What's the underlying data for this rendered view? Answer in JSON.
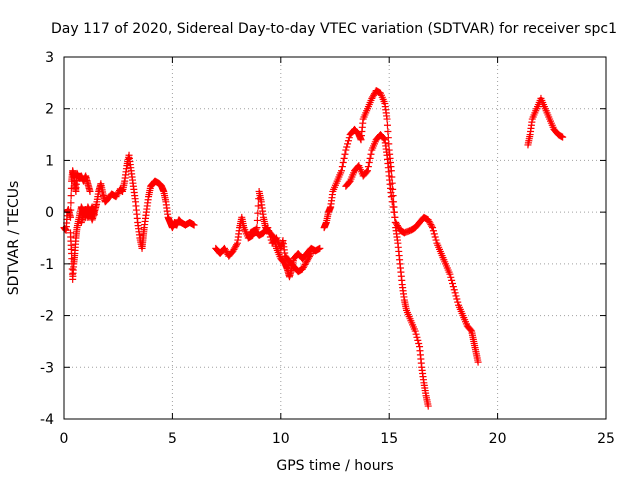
{
  "chart_data": {
    "type": "scatter",
    "title": "Day 117 of 2020, Sidereal Day-to-day VTEC variation (SDTVAR) for receiver spc1",
    "xlabel": "GPS time / hours",
    "ylabel": "SDTVAR / TECUs",
    "xlim": [
      0,
      25
    ],
    "ylim": [
      -4,
      3
    ],
    "xticks": [
      "0",
      "5",
      "10",
      "15",
      "20",
      "25"
    ],
    "yticks": [
      "-4",
      "-3",
      "-2",
      "-1",
      "0",
      "1",
      "2",
      "3"
    ],
    "grid": true,
    "marker": "plus",
    "color": "#ff0000",
    "series": [
      {
        "name": "SDTVAR",
        "segments": [
          [
            [
              0.0,
              -0.3
            ],
            [
              0.1,
              -0.35
            ],
            [
              0.15,
              0.0
            ],
            [
              0.2,
              0.05
            ],
            [
              0.3,
              -0.1
            ],
            [
              0.35,
              0.6
            ],
            [
              0.4,
              0.8
            ],
            [
              0.45,
              0.7
            ],
            [
              0.5,
              0.55
            ],
            [
              0.55,
              0.4
            ],
            [
              0.6,
              0.75
            ],
            [
              0.7,
              0.65
            ],
            [
              0.8,
              0.7
            ],
            [
              0.9,
              0.6
            ],
            [
              1.0,
              0.7
            ],
            [
              1.1,
              0.55
            ],
            [
              1.2,
              0.4
            ]
          ],
          [
            [
              0.3,
              -0.4
            ],
            [
              0.35,
              -0.8
            ],
            [
              0.4,
              -1.3
            ],
            [
              0.45,
              -1.0
            ],
            [
              0.5,
              -0.8
            ],
            [
              0.55,
              -0.5
            ],
            [
              0.6,
              -0.3
            ],
            [
              0.7,
              -0.1
            ],
            [
              0.8,
              0.1
            ],
            [
              0.9,
              0.0
            ],
            [
              1.0,
              -0.1
            ],
            [
              1.1,
              0.1
            ],
            [
              1.2,
              0.0
            ],
            [
              1.3,
              -0.15
            ],
            [
              1.4,
              0.0
            ],
            [
              1.5,
              0.15
            ],
            [
              1.6,
              0.4
            ],
            [
              1.7,
              0.55
            ],
            [
              1.8,
              0.35
            ],
            [
              1.9,
              0.2
            ],
            [
              2.0,
              0.25
            ],
            [
              2.2,
              0.35
            ],
            [
              2.4,
              0.3
            ],
            [
              2.6,
              0.45
            ],
            [
              2.7,
              0.4
            ],
            [
              2.8,
              0.6
            ],
            [
              2.9,
              0.9
            ],
            [
              3.0,
              1.1
            ],
            [
              3.1,
              0.8
            ],
            [
              3.2,
              0.5
            ],
            [
              3.3,
              0.2
            ],
            [
              3.4,
              -0.2
            ],
            [
              3.5,
              -0.5
            ],
            [
              3.6,
              -0.7
            ],
            [
              3.65,
              -0.5
            ],
            [
              3.7,
              -0.3
            ],
            [
              3.8,
              0.0
            ],
            [
              3.9,
              0.3
            ],
            [
              4.0,
              0.5
            ],
            [
              4.1,
              0.55
            ],
            [
              4.2,
              0.6
            ],
            [
              4.4,
              0.55
            ],
            [
              4.5,
              0.5
            ],
            [
              4.6,
              0.4
            ],
            [
              4.7,
              0.2
            ],
            [
              4.8,
              -0.1
            ],
            [
              4.9,
              -0.2
            ],
            [
              5.0,
              -0.3
            ],
            [
              5.1,
              -0.2
            ],
            [
              5.2,
              -0.25
            ],
            [
              5.3,
              -0.15
            ],
            [
              5.4,
              -0.2
            ],
            [
              5.6,
              -0.25
            ],
            [
              5.8,
              -0.2
            ],
            [
              6.0,
              -0.25
            ]
          ],
          [
            [
              0.8,
              -0.2
            ],
            [
              0.9,
              -0.05
            ],
            [
              1.0,
              0.05
            ],
            [
              1.1,
              -0.1
            ],
            [
              1.2,
              0.0
            ],
            [
              1.3,
              0.1
            ],
            [
              1.4,
              -0.05
            ]
          ],
          [
            [
              7.0,
              -0.7
            ],
            [
              7.2,
              -0.8
            ],
            [
              7.4,
              -0.7
            ],
            [
              7.6,
              -0.85
            ],
            [
              7.8,
              -0.75
            ],
            [
              8.0,
              -0.6
            ],
            [
              8.1,
              -0.3
            ],
            [
              8.2,
              -0.1
            ],
            [
              8.3,
              -0.3
            ],
            [
              8.5,
              -0.5
            ],
            [
              8.7,
              -0.45
            ],
            [
              8.9,
              -0.3
            ],
            [
              9.0,
              0.4
            ],
            [
              9.1,
              0.2
            ],
            [
              9.2,
              -0.1
            ],
            [
              9.3,
              -0.3
            ],
            [
              9.5,
              -0.4
            ],
            [
              9.7,
              -0.5
            ],
            [
              9.8,
              -0.7
            ],
            [
              10.0,
              -0.9
            ],
            [
              10.2,
              -1.0
            ],
            [
              10.3,
              -1.1
            ],
            [
              10.4,
              -1.25
            ],
            [
              10.5,
              -1.1
            ],
            [
              10.6,
              -0.9
            ],
            [
              10.8,
              -0.8
            ],
            [
              11.0,
              -0.9
            ],
            [
              11.2,
              -0.8
            ],
            [
              11.4,
              -0.7
            ],
            [
              11.6,
              -0.75
            ],
            [
              11.8,
              -0.7
            ]
          ],
          [
            [
              8.6,
              -0.4
            ],
            [
              8.8,
              -0.35
            ],
            [
              9.0,
              -0.45
            ],
            [
              9.2,
              -0.4
            ],
            [
              9.4,
              -0.3
            ],
            [
              9.6,
              -0.6
            ],
            [
              9.8,
              -0.5
            ],
            [
              10.0,
              -0.7
            ],
            [
              10.1,
              -0.55
            ],
            [
              10.2,
              -0.85
            ],
            [
              10.4,
              -0.95
            ],
            [
              10.6,
              -1.05
            ],
            [
              10.8,
              -1.15
            ],
            [
              11.0,
              -1.1
            ],
            [
              11.2,
              -0.95
            ],
            [
              11.4,
              -0.8
            ]
          ],
          [
            [
              12.0,
              -0.3
            ],
            [
              12.1,
              -0.2
            ],
            [
              12.2,
              0.0
            ],
            [
              12.3,
              0.1
            ],
            [
              12.4,
              0.4
            ],
            [
              12.6,
              0.6
            ],
            [
              12.8,
              0.8
            ],
            [
              13.0,
              1.2
            ],
            [
              13.2,
              1.5
            ],
            [
              13.4,
              1.6
            ],
            [
              13.6,
              1.5
            ],
            [
              13.7,
              1.4
            ],
            [
              13.8,
              1.8
            ],
            [
              14.0,
              2.0
            ],
            [
              14.2,
              2.2
            ],
            [
              14.4,
              2.35
            ],
            [
              14.6,
              2.3
            ],
            [
              14.8,
              2.1
            ],
            [
              14.9,
              1.8
            ],
            [
              15.0,
              1.2
            ],
            [
              15.1,
              0.8
            ],
            [
              15.2,
              0.2
            ],
            [
              15.3,
              -0.3
            ],
            [
              15.4,
              -0.6
            ],
            [
              15.5,
              -1.0
            ],
            [
              15.6,
              -1.4
            ],
            [
              15.7,
              -1.7
            ],
            [
              15.8,
              -1.9
            ],
            [
              16.0,
              -2.1
            ],
            [
              16.2,
              -2.3
            ],
            [
              16.4,
              -2.6
            ],
            [
              16.5,
              -3.0
            ],
            [
              16.6,
              -3.3
            ],
            [
              16.7,
              -3.55
            ],
            [
              16.8,
              -3.75
            ]
          ],
          [
            [
              13.0,
              0.5
            ],
            [
              13.2,
              0.6
            ],
            [
              13.4,
              0.8
            ],
            [
              13.6,
              0.9
            ],
            [
              13.8,
              0.7
            ],
            [
              14.0,
              0.8
            ],
            [
              14.2,
              1.2
            ],
            [
              14.4,
              1.4
            ],
            [
              14.6,
              1.5
            ],
            [
              14.8,
              1.4
            ],
            [
              14.9,
              1.1
            ],
            [
              15.0,
              0.7
            ],
            [
              15.1,
              0.3
            ],
            [
              15.3,
              -0.2
            ],
            [
              15.5,
              -0.35
            ],
            [
              15.7,
              -0.4
            ],
            [
              16.0,
              -0.35
            ],
            [
              16.2,
              -0.3
            ],
            [
              16.4,
              -0.2
            ],
            [
              16.6,
              -0.1
            ],
            [
              16.8,
              -0.15
            ],
            [
              17.0,
              -0.3
            ],
            [
              17.2,
              -0.6
            ],
            [
              17.4,
              -0.8
            ],
            [
              17.6,
              -1.0
            ],
            [
              17.8,
              -1.2
            ],
            [
              18.0,
              -1.5
            ],
            [
              18.2,
              -1.8
            ],
            [
              18.4,
              -2.0
            ],
            [
              18.6,
              -2.2
            ],
            [
              18.8,
              -2.3
            ],
            [
              18.9,
              -2.5
            ],
            [
              19.0,
              -2.7
            ],
            [
              19.1,
              -2.9
            ]
          ],
          [
            [
              21.4,
              1.3
            ],
            [
              21.5,
              1.5
            ],
            [
              21.6,
              1.8
            ],
            [
              21.8,
              2.0
            ],
            [
              22.0,
              2.2
            ],
            [
              22.2,
              2.0
            ],
            [
              22.4,
              1.8
            ],
            [
              22.6,
              1.6
            ],
            [
              22.8,
              1.5
            ],
            [
              23.0,
              1.45
            ]
          ]
        ]
      }
    ]
  }
}
